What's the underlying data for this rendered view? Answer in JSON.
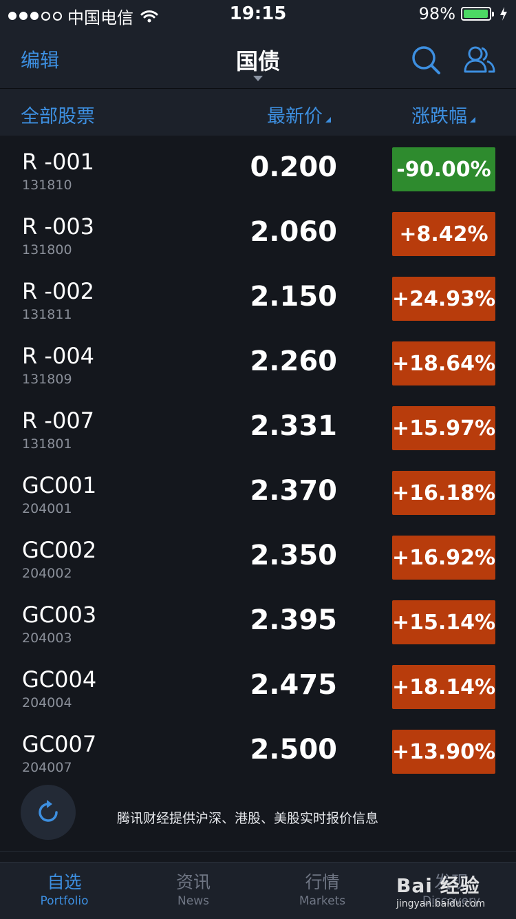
{
  "status_bar": {
    "carrier": "中国电信",
    "time": "19:15",
    "battery_percent": "98%",
    "battery_level": 0.98
  },
  "nav": {
    "edit_label": "编辑",
    "title": "国债"
  },
  "columns": {
    "all_stocks": "全部股票",
    "latest_price": "最新价",
    "change_pct": "涨跌幅"
  },
  "colors": {
    "accent": "#3d8fe0",
    "down": "#2e8b2e",
    "up": "#b83c0c",
    "background": "#14171d",
    "bar": "#1c212a"
  },
  "rows": [
    {
      "name": "R -001",
      "code": "131810",
      "price": "0.200",
      "change": "-90.00%",
      "dir": "down"
    },
    {
      "name": "R -003",
      "code": "131800",
      "price": "2.060",
      "change": "+8.42%",
      "dir": "up"
    },
    {
      "name": "R -002",
      "code": "131811",
      "price": "2.150",
      "change": "+24.93%",
      "dir": "up"
    },
    {
      "name": "R -004",
      "code": "131809",
      "price": "2.260",
      "change": "+18.64%",
      "dir": "up"
    },
    {
      "name": "R -007",
      "code": "131801",
      "price": "2.331",
      "change": "+15.97%",
      "dir": "up"
    },
    {
      "name": "GC001",
      "code": "204001",
      "price": "2.370",
      "change": "+16.18%",
      "dir": "up"
    },
    {
      "name": "GC002",
      "code": "204002",
      "price": "2.350",
      "change": "+16.92%",
      "dir": "up"
    },
    {
      "name": "GC003",
      "code": "204003",
      "price": "2.395",
      "change": "+15.14%",
      "dir": "up"
    },
    {
      "name": "GC004",
      "code": "204004",
      "price": "2.475",
      "change": "+18.14%",
      "dir": "up"
    },
    {
      "name": "GC007",
      "code": "204007",
      "price": "2.500",
      "change": "+13.90%",
      "dir": "up"
    }
  ],
  "footer_note": "腾讯财经提供沪深、港股、美股实时报价信息",
  "tabs": [
    {
      "cn": "自选",
      "en": "Portfolio",
      "active": true
    },
    {
      "cn": "资讯",
      "en": "News",
      "active": false
    },
    {
      "cn": "行情",
      "en": "Markets",
      "active": false
    },
    {
      "cn": "发现",
      "en": "Discovery",
      "active": false
    }
  ],
  "watermark": {
    "brand": "Bai 经验",
    "url": "jingyan.baidu.com"
  },
  "icons": {
    "search": "search-icon",
    "contacts": "contacts-icon",
    "refresh": "refresh-icon",
    "wifi": "wifi-icon",
    "signal": "signal-dots-icon",
    "battery": "battery-icon",
    "charging": "charging-icon"
  }
}
